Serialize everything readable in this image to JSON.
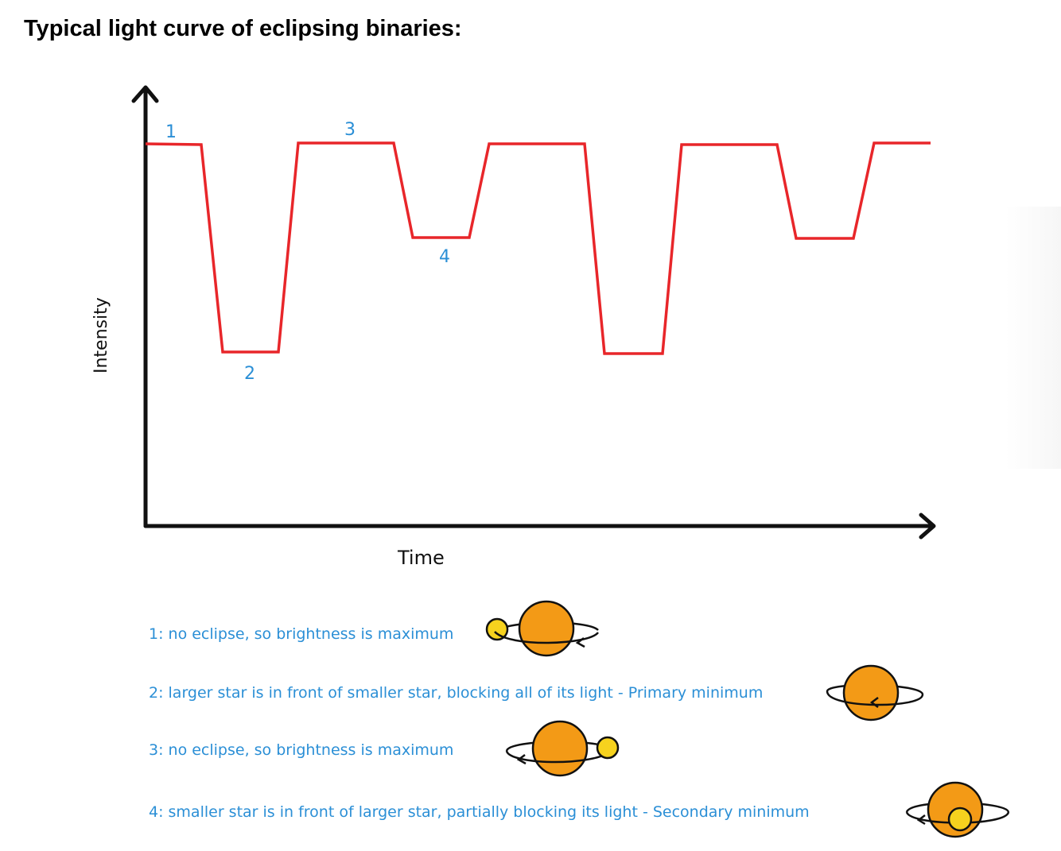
{
  "title": "Typical light curve of eclipsing binaries:",
  "axes": {
    "y_label": "Intensity",
    "x_label": "Time"
  },
  "curve_labels": [
    "1",
    "2",
    "3",
    "4"
  ],
  "legend": [
    {
      "text": "1: no eclipse, so brightness is maximum"
    },
    {
      "text": "2: larger star is in front of smaller star, blocking all of its light - Primary minimum"
    },
    {
      "text": "3: no eclipse, so brightness is maximum"
    },
    {
      "text": "4: smaller star is in front of larger star, partially blocking its light - Secondary minimum"
    }
  ],
  "colors": {
    "curve": "#e8262a",
    "handwriting": "#2b8fd6",
    "large_star": "#f39a16",
    "small_star": "#f6d21e",
    "axis": "#111111"
  }
}
